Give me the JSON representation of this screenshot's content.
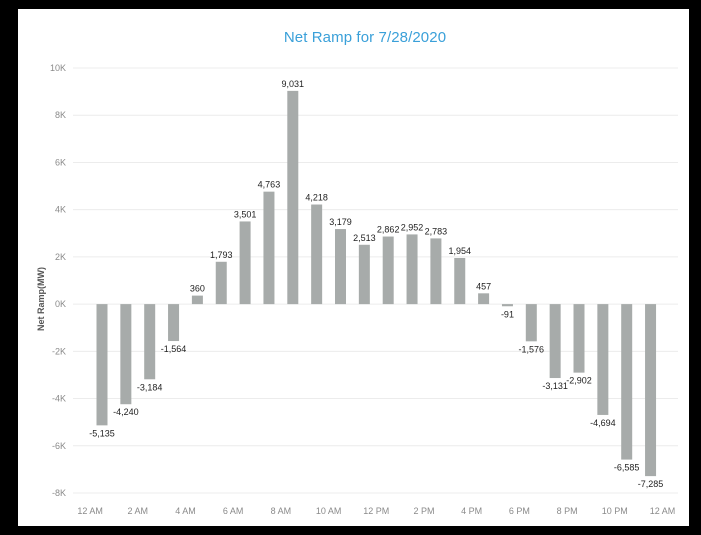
{
  "chart_data": {
    "type": "bar",
    "title": "Net Ramp for 7/28/2020",
    "xlabel": "",
    "ylabel": "Net Ramp(MW)",
    "ylim": [
      -8000,
      10000
    ],
    "y_ticks": [
      10000,
      8000,
      6000,
      4000,
      2000,
      0,
      -2000,
      -4000,
      -6000,
      -8000
    ],
    "y_tick_labels": [
      "10K",
      "8K",
      "6K",
      "4K",
      "2K",
      "0K",
      "-2K",
      "-4K",
      "-6K",
      "-8K"
    ],
    "x_tick_labels": [
      "12 AM",
      "2 AM",
      "4 AM",
      "6 AM",
      "8 AM",
      "10 AM",
      "12 PM",
      "2 PM",
      "4 PM",
      "6 PM",
      "8 PM",
      "10 PM",
      "12 AM"
    ],
    "values": [
      -5135,
      -4240,
      -3184,
      -1564,
      360,
      1793,
      3501,
      4763,
      9031,
      4218,
      3179,
      2513,
      2862,
      2952,
      2783,
      1954,
      457,
      -91,
      -1576,
      -3131,
      -2902,
      -4694,
      -6585,
      -7285
    ],
    "data_labels": [
      "-5,135",
      "-4,240",
      "-3,184",
      "-1,564",
      "360",
      "1,793",
      "3,501",
      "4,763",
      "9,031",
      "4,218",
      "3,179",
      "2,513",
      "2,862",
      "2,952",
      "2,783",
      "1,954",
      "457",
      "-91",
      "-1,576",
      "-3,131",
      "-2,902",
      "-4,694",
      "-6,585",
      "-7,285"
    ],
    "grid": true,
    "legend": "none"
  },
  "colors": {
    "bar": "#a7abaa",
    "title": "#3aa0d9",
    "grid": "#ececec",
    "frame": "#000000"
  }
}
